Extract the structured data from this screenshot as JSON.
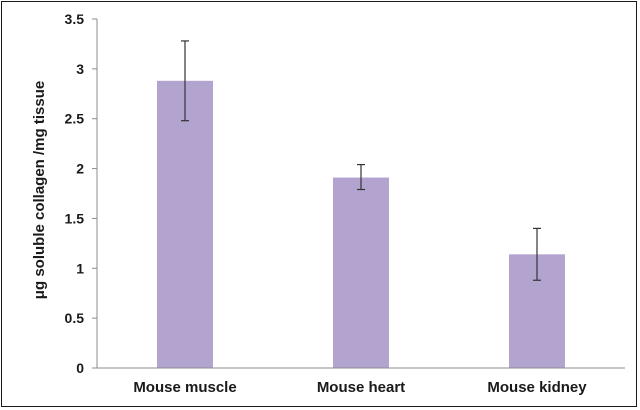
{
  "chart_data": {
    "type": "bar",
    "title": "",
    "xlabel": "",
    "ylabel": "μg soluble collagen /mg tissue",
    "categories": [
      "Mouse muscle",
      "Mouse heart",
      "Mouse kidney"
    ],
    "values": [
      2.88,
      1.91,
      1.14
    ],
    "error_upper": [
      3.28,
      2.04,
      1.4
    ],
    "error_lower": [
      2.48,
      1.79,
      0.88
    ],
    "ylim": [
      0,
      3.5
    ],
    "yticks": [
      "0",
      "0.5",
      "1",
      "1.5",
      "2",
      "2.5",
      "3",
      "3.5"
    ],
    "ytick_values": [
      0,
      0.5,
      1,
      1.5,
      2,
      2.5,
      3,
      3.5
    ],
    "grid": false,
    "legend": "none",
    "colors": {
      "bar": "#b3a3cf",
      "axis": "#8c8c8c",
      "error_bar": "#333333",
      "text": "#1a1a1a"
    }
  }
}
